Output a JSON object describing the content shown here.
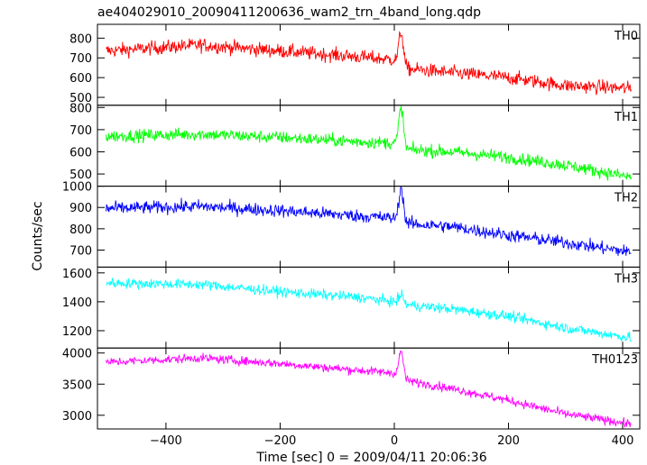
{
  "chart_data": {
    "type": "line",
    "title": "ae404029010_20090411200636_wam2_trn_4band_long.qdp",
    "xlabel": "Time [sec] 0 = 2009/04/11 20:06:36",
    "ylabel": "Counts/sec",
    "xlim": [
      -520,
      430
    ],
    "x_ticks": [
      -400,
      -200,
      0,
      200,
      400
    ],
    "x_tick_labels": [
      "−400",
      "−200",
      "0",
      "200",
      "400"
    ],
    "x_range_data": [
      -505,
      415
    ],
    "legend": "none",
    "grid": false,
    "panels": [
      {
        "name": "TH0",
        "color": "#ff0000",
        "ylim": [
          460,
          870
        ],
        "y_ticks": [
          500,
          600,
          700,
          800
        ],
        "y_tick_labels": [
          "500",
          "600",
          "700",
          "800"
        ],
        "trend": [
          [
            -505,
            735
          ],
          [
            -340,
            765
          ],
          [
            -200,
            735
          ],
          [
            -60,
            705
          ],
          [
            0,
            690
          ],
          [
            20,
            645
          ],
          [
            100,
            625
          ],
          [
            200,
            600
          ],
          [
            300,
            560
          ],
          [
            415,
            545
          ]
        ],
        "noise": 35,
        "flare": {
          "x": 12,
          "peak": 830
        }
      },
      {
        "name": "TH1",
        "color": "#00ff00",
        "ylim": [
          445,
          810
        ],
        "y_ticks": [
          500,
          600,
          700,
          800
        ],
        "y_tick_labels": [
          "500",
          "600",
          "700",
          "800"
        ],
        "trend": [
          [
            -505,
            670
          ],
          [
            -340,
            680
          ],
          [
            -200,
            665
          ],
          [
            -60,
            645
          ],
          [
            0,
            640
          ],
          [
            20,
            610
          ],
          [
            100,
            600
          ],
          [
            200,
            575
          ],
          [
            300,
            540
          ],
          [
            415,
            485
          ]
        ],
        "noise": 28,
        "flare": {
          "x": 12,
          "peak": 800
        }
      },
      {
        "name": "TH2",
        "color": "#0000ff",
        "ylim": [
          620,
          1000
        ],
        "y_ticks": [
          700,
          800,
          900,
          1000
        ],
        "y_tick_labels": [
          "700",
          "800",
          "900",
          "1000"
        ],
        "trend": [
          [
            -505,
            895
          ],
          [
            -340,
            905
          ],
          [
            -200,
            885
          ],
          [
            -60,
            860
          ],
          [
            0,
            850
          ],
          [
            20,
            825
          ],
          [
            100,
            810
          ],
          [
            200,
            770
          ],
          [
            300,
            735
          ],
          [
            415,
            690
          ]
        ],
        "noise": 30,
        "flare": {
          "x": 12,
          "peak": 990
        }
      },
      {
        "name": "TH3",
        "color": "#00ffff",
        "ylim": [
          1080,
          1640
        ],
        "y_ticks": [
          1200,
          1400,
          1600
        ],
        "y_tick_labels": [
          "1200",
          "1400",
          "1600"
        ],
        "trend": [
          [
            -505,
            1530
          ],
          [
            -340,
            1520
          ],
          [
            -200,
            1470
          ],
          [
            -60,
            1430
          ],
          [
            0,
            1400
          ],
          [
            20,
            1380
          ],
          [
            100,
            1350
          ],
          [
            200,
            1300
          ],
          [
            300,
            1220
          ],
          [
            415,
            1150
          ]
        ],
        "noise": 35,
        "flare": {
          "x": 12,
          "peak": 1450
        }
      },
      {
        "name": "TH0123",
        "color": "#ff00ff",
        "ylim": [
          2780,
          4080
        ],
        "y_ticks": [
          3000,
          3500,
          4000
        ],
        "y_tick_labels": [
          "3000",
          "3500",
          "4000"
        ],
        "trend": [
          [
            -505,
            3850
          ],
          [
            -340,
            3920
          ],
          [
            -200,
            3830
          ],
          [
            -60,
            3720
          ],
          [
            0,
            3680
          ],
          [
            20,
            3560
          ],
          [
            100,
            3430
          ],
          [
            200,
            3240
          ],
          [
            300,
            3020
          ],
          [
            415,
            2860
          ]
        ],
        "noise": 70,
        "flare": {
          "x": 12,
          "peak": 4020
        }
      }
    ]
  }
}
